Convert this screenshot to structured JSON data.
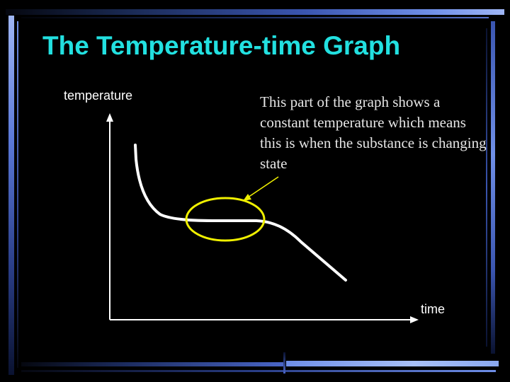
{
  "slide": {
    "title": "The Temperature-time Graph",
    "callout_text": "This part of the graph shows a constant temperature which means this is when the substance is changing state"
  },
  "graph": {
    "y_axis_label": "temperature",
    "x_axis_label": "time"
  },
  "colors": {
    "background": "#000000",
    "title": "#22e0e0",
    "callout_text": "#e6e6e6",
    "curve": "#ffffff",
    "highlight": "#f0f000",
    "arrow": "#f0f000"
  }
}
